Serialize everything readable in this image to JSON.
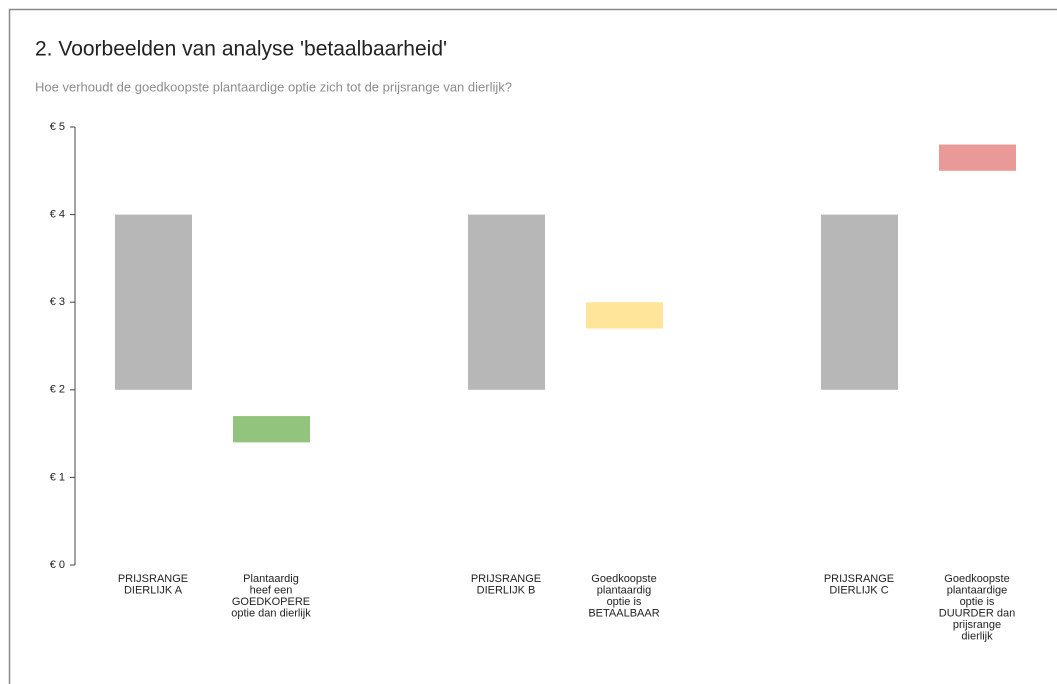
{
  "chart_data": {
    "type": "range-bar",
    "title": "2. Voorbeelden van analyse 'betaalbaarheid'",
    "subtitle": "Hoe verhoudt de goedkoopste plantaardige optie zich tot de prijsrange van dierlijk?",
    "categories": [
      [
        "PRIJSRANGE",
        "DIERLIJK A"
      ],
      [
        "Plantaardig",
        "heef een",
        "GOEDKOPERE",
        "optie dan dierlijk"
      ],
      [
        "PRIJSRANGE",
        "DIERLIJK B"
      ],
      [
        "Goedkoopste",
        "plantaardig",
        "optie is",
        "BETAALBAAR"
      ],
      [
        "PRIJSRANGE",
        "DIERLIJK C"
      ],
      [
        "Goedkoopste",
        "plantaardige",
        "optie is",
        "DUURDER dan",
        "prijsrange",
        "dierlijk"
      ]
    ],
    "low": [
      2,
      1.4,
      2,
      2.7,
      2,
      4.5
    ],
    "high": [
      4,
      1.7,
      4,
      3,
      4,
      4.8
    ],
    "colors": [
      "#b7b7b7",
      "#93c47d",
      "#b7b7b7",
      "#ffe599",
      "#b7b7b7",
      "#ea9999"
    ],
    "ylim": [
      0,
      5
    ],
    "yticks": [
      {
        "value": 0,
        "label": "€ 0"
      },
      {
        "value": 1,
        "label": "€ 1"
      },
      {
        "value": 2,
        "label": "€ 2"
      },
      {
        "value": 3,
        "label": "€ 3"
      },
      {
        "value": 4,
        "label": "€ 4"
      },
      {
        "value": 5,
        "label": "€ 5"
      }
    ]
  }
}
